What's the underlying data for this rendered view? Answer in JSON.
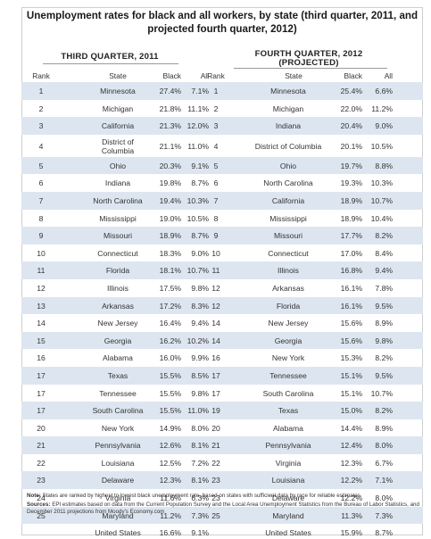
{
  "title": "Unemployment rates for black and all workers, by state (third quarter, 2011, and projected fourth quarter, 2012)",
  "section1": "THIRD QUARTER, 2011",
  "section2_line1": "FOURTH QUARTER, 2012",
  "section2_line2": "(PROJECTED)",
  "columns": {
    "rank": "Rank",
    "state": "State",
    "black": "Black",
    "all": "All",
    "rank2": "Rank",
    "state2": "State",
    "black2": "Black",
    "all2": "All"
  },
  "rows": [
    {
      "rank": "1",
      "state": "Minnesota",
      "black": "27.4%",
      "all": "7.1%",
      "rank2": "1",
      "state2": "Minnesota",
      "black2": "25.4%",
      "all2": "6.6%"
    },
    {
      "rank": "2",
      "state": "Michigan",
      "black": "21.8%",
      "all": "11.1%",
      "rank2": "2",
      "state2": "Michigan",
      "black2": "22.0%",
      "all2": "11.2%"
    },
    {
      "rank": "3",
      "state": "California",
      "black": "21.3%",
      "all": "12.0%",
      "rank2": "3",
      "state2": "Indiana",
      "black2": "20.4%",
      "all2": "9.0%"
    },
    {
      "rank": "4",
      "state": "District of Columbia",
      "black": "21.1%",
      "all": "11.0%",
      "rank2": "4",
      "state2": "District of Columbia",
      "black2": "20.1%",
      "all2": "10.5%"
    },
    {
      "rank": "5",
      "state": "Ohio",
      "black": "20.3%",
      "all": "9.1%",
      "rank2": "5",
      "state2": "Ohio",
      "black2": "19.7%",
      "all2": "8.8%"
    },
    {
      "rank": "6",
      "state": "Indiana",
      "black": "19.8%",
      "all": "8.7%",
      "rank2": "6",
      "state2": "North Carolina",
      "black2": "19.3%",
      "all2": "10.3%"
    },
    {
      "rank": "7",
      "state": "North Carolina",
      "black": "19.4%",
      "all": "10.3%",
      "rank2": "7",
      "state2": "California",
      "black2": "18.9%",
      "all2": "10.7%"
    },
    {
      "rank": "8",
      "state": "Mississippi",
      "black": "19.0%",
      "all": "10.5%",
      "rank2": "8",
      "state2": "Mississippi",
      "black2": "18.9%",
      "all2": "10.4%"
    },
    {
      "rank": "9",
      "state": "Missouri",
      "black": "18.9%",
      "all": "8.7%",
      "rank2": "9",
      "state2": "Missouri",
      "black2": "17.7%",
      "all2": "8.2%"
    },
    {
      "rank": "10",
      "state": "Connecticut",
      "black": "18.3%",
      "all": "9.0%",
      "rank2": "10",
      "state2": "Connecticut",
      "black2": "17.0%",
      "all2": "8.4%"
    },
    {
      "rank": "11",
      "state": "Florida",
      "black": "18.1%",
      "all": "10.7%",
      "rank2": "11",
      "state2": "Illinois",
      "black2": "16.8%",
      "all2": "9.4%"
    },
    {
      "rank": "12",
      "state": "Illinois",
      "black": "17.5%",
      "all": "9.8%",
      "rank2": "12",
      "state2": "Arkansas",
      "black2": "16.1%",
      "all2": "7.8%"
    },
    {
      "rank": "13",
      "state": "Arkansas",
      "black": "17.2%",
      "all": "8.3%",
      "rank2": "12",
      "state2": "Florida",
      "black2": "16.1%",
      "all2": "9.5%"
    },
    {
      "rank": "14",
      "state": "New Jersey",
      "black": "16.4%",
      "all": "9.4%",
      "rank2": "14",
      "state2": "New Jersey",
      "black2": "15.6%",
      "all2": "8.9%"
    },
    {
      "rank": "15",
      "state": "Georgia",
      "black": "16.2%",
      "all": "10.2%",
      "rank2": "14",
      "state2": "Georgia",
      "black2": "15.6%",
      "all2": "9.8%"
    },
    {
      "rank": "16",
      "state": "Alabama",
      "black": "16.0%",
      "all": "9.9%",
      "rank2": "16",
      "state2": "New York",
      "black2": "15.3%",
      "all2": "8.2%"
    },
    {
      "rank": "17",
      "state": "Texas",
      "black": "15.5%",
      "all": "8.5%",
      "rank2": "17",
      "state2": "Tennessee",
      "black2": "15.1%",
      "all2": "9.5%"
    },
    {
      "rank": "17",
      "state": "Tennessee",
      "black": "15.5%",
      "all": "9.8%",
      "rank2": "17",
      "state2": "South Carolina",
      "black2": "15.1%",
      "all2": "10.7%"
    },
    {
      "rank": "17",
      "state": "South Carolina",
      "black": "15.5%",
      "all": "11.0%",
      "rank2": "19",
      "state2": "Texas",
      "black2": "15.0%",
      "all2": "8.2%"
    },
    {
      "rank": "20",
      "state": "New York",
      "black": "14.9%",
      "all": "8.0%",
      "rank2": "20",
      "state2": "Alabama",
      "black2": "14.4%",
      "all2": "8.9%"
    },
    {
      "rank": "21",
      "state": "Pennsylvania",
      "black": "12.6%",
      "all": "8.1%",
      "rank2": "21",
      "state2": "Pennsylvania",
      "black2": "12.4%",
      "all2": "8.0%"
    },
    {
      "rank": "22",
      "state": "Louisiana",
      "black": "12.5%",
      "all": "7.2%",
      "rank2": "22",
      "state2": "Virginia",
      "black2": "12.3%",
      "all2": "6.7%"
    },
    {
      "rank": "23",
      "state": "Delaware",
      "black": "12.3%",
      "all": "8.1%",
      "rank2": "23",
      "state2": "Louisiana",
      "black2": "12.2%",
      "all2": "7.1%"
    },
    {
      "rank": "24",
      "state": "Virginia",
      "black": "11.6%",
      "all": "6.3%",
      "rank2": "23",
      "state2": "Delaware",
      "black2": "12.2%",
      "all2": "8.0%"
    },
    {
      "rank": "25",
      "state": "Maryland",
      "black": "11.2%",
      "all": "7.3%",
      "rank2": "25",
      "state2": "Maryland",
      "black2": "11.3%",
      "all2": "7.3%"
    },
    {
      "rank": "",
      "state": "United States",
      "black": "16.6%",
      "all": "9.1%",
      "rank2": "",
      "state2": "United States",
      "black2": "15.9%",
      "all2": "8.7%"
    }
  ],
  "note_label": "Note:",
  "note_text": "States are ranked by highest to lowest black unemployment rate, based on states with sufficient data by race for reliable estimates.",
  "sources_label": "Sources:",
  "sources_text": "EPI estimates based on data from the Current Population Survey and the Local Area Unemployment Statistics from the Bureau of Labor Statistics, and December 2011 projections from Moody's Economy.com"
}
